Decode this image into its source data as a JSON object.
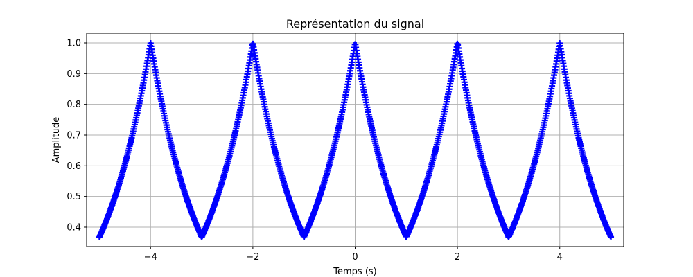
{
  "chart_data": {
    "type": "line",
    "title": "Représentation du signal",
    "xlabel": "Temps (s)",
    "ylabel": "Amplitude",
    "xlim": [
      -5.25,
      5.25
    ],
    "ylim": [
      0.3368,
      1.0316
    ],
    "grid": true,
    "x_ticks": [
      -4,
      -2,
      0,
      2,
      4
    ],
    "x_tick_labels": [
      "−4",
      "−2",
      "0",
      "2",
      "4"
    ],
    "y_ticks": [
      0.4,
      0.5,
      0.6,
      0.7,
      0.8,
      0.9,
      1.0
    ],
    "y_tick_labels": [
      "0.4",
      "0.5",
      "0.6",
      "0.7",
      "0.8",
      "0.9",
      "1.0"
    ],
    "series": [
      {
        "name": "signal",
        "color": "#0000ff",
        "marker": "plus",
        "formula": "exp(-|t - 2*round(t/2)|)",
        "x_range": [
          -5,
          5
        ],
        "x": [
          -5,
          -4.75,
          -4.5,
          -4.25,
          -4,
          -3.75,
          -3.5,
          -3.25,
          -3,
          -2.75,
          -2.5,
          -2.25,
          -2,
          -1.75,
          -1.5,
          -1.25,
          -1,
          -0.75,
          -0.5,
          -0.25,
          0,
          0.25,
          0.5,
          0.75,
          1,
          1.25,
          1.5,
          1.75,
          2,
          2.25,
          2.5,
          2.75,
          3,
          3.25,
          3.5,
          3.75,
          4,
          4.25,
          4.5,
          4.75,
          5
        ],
        "y": [
          0.368,
          0.472,
          0.607,
          0.779,
          1.0,
          0.779,
          0.607,
          0.472,
          0.368,
          0.472,
          0.607,
          0.779,
          1.0,
          0.779,
          0.607,
          0.472,
          0.368,
          0.472,
          0.607,
          0.779,
          1.0,
          0.779,
          0.607,
          0.472,
          0.368,
          0.472,
          0.607,
          0.779,
          1.0,
          0.779,
          0.607,
          0.472,
          0.368,
          0.472,
          0.607,
          0.779,
          1.0,
          0.779,
          0.607,
          0.472,
          0.368
        ]
      }
    ]
  }
}
